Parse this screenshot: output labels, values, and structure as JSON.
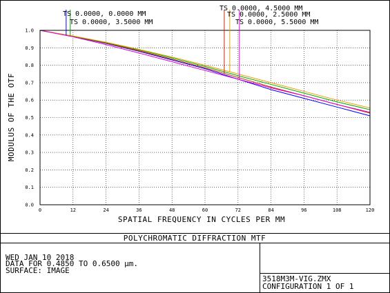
{
  "chart_data": {
    "type": "line",
    "title": "POLYCHROMATIC DIFFRACTION MTF",
    "xlabel": "SPATIAL FREQUENCY IN CYCLES PER MM",
    "ylabel": "MODULUS OF THE OTF",
    "xlim": [
      0,
      120
    ],
    "ylim": [
      0,
      1.0
    ],
    "xticks": [
      0,
      12,
      24,
      36,
      48,
      60,
      72,
      84,
      96,
      108,
      120
    ],
    "yticks": [
      0.0,
      0.1,
      0.2,
      0.3,
      0.4,
      0.5,
      0.6,
      0.7,
      0.8,
      0.9,
      1.0
    ],
    "grid": true,
    "x": [
      0,
      12,
      24,
      36,
      48,
      60,
      72,
      84,
      96,
      108,
      120
    ],
    "series": [
      {
        "name": "TS 0.0000, 0.0000 MM",
        "color": "#0000ff",
        "marker_x": 9.5,
        "values": [
          1.0,
          0.965,
          0.925,
          0.88,
          0.83,
          0.78,
          0.72,
          0.66,
          0.61,
          0.56,
          0.51
        ]
      },
      {
        "name": "TS 0.0000, 2.5000 MM",
        "color": "#cc2200",
        "marker_x": 67,
        "values": [
          1.0,
          0.966,
          0.927,
          0.883,
          0.835,
          0.785,
          0.73,
          0.675,
          0.625,
          0.575,
          0.525
        ]
      },
      {
        "name": "TS 0.0000, 3.5000 MM",
        "color": "#00aa00",
        "marker_x": 11,
        "values": [
          1.0,
          0.967,
          0.93,
          0.888,
          0.842,
          0.793,
          0.74,
          0.69,
          0.64,
          0.59,
          0.545
        ]
      },
      {
        "name": "TS 0.0000, 4.5000 MM",
        "color": "#e8a000",
        "marker_x": 69,
        "values": [
          1.0,
          0.968,
          0.932,
          0.891,
          0.847,
          0.8,
          0.75,
          0.7,
          0.65,
          0.6,
          0.555
        ]
      },
      {
        "name": "TS 0.0000, 5.5000 MM",
        "color": "#dd00dd",
        "marker_x": 72.5,
        "values": [
          1.0,
          0.963,
          0.918,
          0.87,
          0.82,
          0.77,
          0.72,
          0.67,
          0.625,
          0.575,
          0.53
        ]
      }
    ],
    "legend": [
      {
        "text": "TS 0.0000, 0.0000 MM"
      },
      {
        "text": "TS 0.0000, 3.5000 MM"
      },
      {
        "text": "TS 0.0000, 4.5000 MM"
      },
      {
        "text": "TS 0.0000, 2.5000 MM"
      },
      {
        "text": "TS 0.0000, 5.5000 MM"
      }
    ]
  },
  "footer": {
    "date": "WED JAN 10 2018",
    "data_range": "DATA FOR 0.4850 TO 0.6500 µm.",
    "surface": "SURFACE: IMAGE",
    "filename": "3518M3M-VIG.ZMX",
    "configuration": "CONFIGURATION 1 OF 1"
  }
}
